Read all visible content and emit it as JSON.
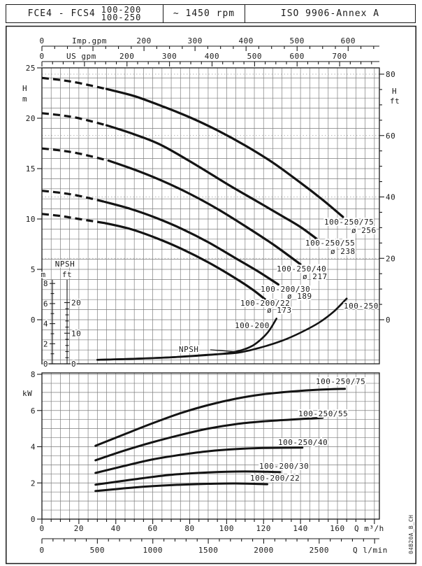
{
  "header": {
    "model": "FCE4 - FCS4",
    "sizes": [
      "100-200",
      "100-250"
    ],
    "speed": "~ 1450 rpm",
    "standard": "ISO 9906-Annex A"
  },
  "watermark": "04B20A_B_CH",
  "chart_data": {
    "type": "line",
    "title": "FCE4 - FCS4 pump performance curves at ~1450 rpm",
    "charts": [
      {
        "id": "head-flow",
        "x_axes": [
          {
            "id": "imp_gpm",
            "label": "Imp.gpm",
            "ticks": [
              0,
              200,
              300,
              400,
              500,
              600
            ],
            "minor_step": 25,
            "minor_max": 650
          },
          {
            "id": "us_gpm",
            "label": "US gpm",
            "ticks": [
              0,
              200,
              300,
              400,
              500,
              600,
              700
            ],
            "minor_step": 25,
            "minor_max": 775
          }
        ],
        "y_axis_left": {
          "label": "H",
          "unit": "m",
          "ticks": [
            25,
            20,
            15,
            10,
            5,
            0
          ],
          "range": [
            0,
            25
          ]
        },
        "y_axis_right": {
          "label": "H",
          "unit": "ft",
          "ticks": [
            80,
            60,
            40,
            20,
            0
          ],
          "range": [
            0,
            80
          ]
        },
        "grid": {
          "x_step_m3h": 5,
          "y_step_m": 1,
          "dotted_ft_lines": [
            20,
            40,
            60,
            80
          ]
        },
        "series": [
          {
            "name": "100-250/75",
            "impeller": "ø 256",
            "dash_until_q": 35,
            "points": [
              [
                0,
                24.0
              ],
              [
                10,
                23.8
              ],
              [
                20,
                23.5
              ],
              [
                35,
                22.9
              ],
              [
                50,
                22.2
              ],
              [
                65,
                21.2
              ],
              [
                80,
                20.1
              ],
              [
                95,
                18.8
              ],
              [
                110,
                17.3
              ],
              [
                125,
                15.6
              ],
              [
                140,
                13.6
              ],
              [
                152,
                11.9
              ],
              [
                163,
                10.2
              ]
            ]
          },
          {
            "name": "100-250/55",
            "impeller": "ø 238",
            "dash_until_q": 35,
            "points": [
              [
                0,
                20.5
              ],
              [
                10,
                20.3
              ],
              [
                20,
                20.0
              ],
              [
                35,
                19.3
              ],
              [
                50,
                18.4
              ],
              [
                65,
                17.3
              ],
              [
                84,
                15.3
              ],
              [
                100,
                13.5
              ],
              [
                115,
                11.9
              ],
              [
                130,
                10.3
              ],
              [
                140,
                9.2
              ],
              [
                149,
                8.0
              ]
            ]
          },
          {
            "name": "100-250/40",
            "impeller": "ø 217",
            "dash_until_q": 36,
            "points": [
              [
                0,
                17.0
              ],
              [
                10,
                16.8
              ],
              [
                20,
                16.5
              ],
              [
                36,
                15.8
              ],
              [
                50,
                14.9
              ],
              [
                65,
                13.8
              ],
              [
                80,
                12.5
              ],
              [
                95,
                11.0
              ],
              [
                110,
                9.3
              ],
              [
                125,
                7.5
              ],
              [
                140,
                5.5
              ]
            ]
          },
          {
            "name": "100-200/30",
            "impeller": "ø 189",
            "dash_until_q": 34,
            "points": [
              [
                0,
                12.8
              ],
              [
                10,
                12.6
              ],
              [
                20,
                12.3
              ],
              [
                34,
                11.7
              ],
              [
                48,
                11.0
              ],
              [
                62,
                10.1
              ],
              [
                76,
                9.0
              ],
              [
                90,
                7.7
              ],
              [
                104,
                6.2
              ],
              [
                117,
                4.8
              ],
              [
                128,
                3.5
              ]
            ]
          },
          {
            "name": "100-200/22",
            "impeller": "ø 173",
            "dash_until_q": 34,
            "points": [
              [
                0,
                10.5
              ],
              [
                10,
                10.3
              ],
              [
                20,
                10.0
              ],
              [
                34,
                9.6
              ],
              [
                48,
                9.0
              ],
              [
                62,
                8.1
              ],
              [
                76,
                7.0
              ],
              [
                90,
                5.7
              ],
              [
                104,
                4.2
              ],
              [
                114,
                3.0
              ],
              [
                121,
                2.0
              ]
            ]
          }
        ],
        "npsh": {
          "title": "NPSH",
          "y_axis_m": {
            "label": "m",
            "ticks": [
              8,
              6,
              4,
              2,
              0
            ],
            "range": [
              0,
              8
            ]
          },
          "y_axis_ft": {
            "label": "ft",
            "ticks": [
              20,
              10,
              0
            ],
            "range": [
              0,
              20
            ]
          },
          "series": [
            {
              "name": "100-200",
              "points": [
                [
                  30,
                  0.4
                ],
                [
                  50,
                  0.5
                ],
                [
                  70,
                  0.65
                ],
                [
                  88,
                  0.85
                ],
                [
                  100,
                  1.05
                ],
                [
                  108,
                  1.35
                ],
                [
                  114,
                  1.8
                ],
                [
                  119,
                  2.5
                ],
                [
                  123,
                  3.3
                ],
                [
                  127,
                  4.5
                ]
              ]
            },
            {
              "name": "100-250",
              "points": [
                [
                  30,
                  0.4
                ],
                [
                  50,
                  0.5
                ],
                [
                  70,
                  0.65
                ],
                [
                  90,
                  0.9
                ],
                [
                  106,
                  1.1
                ],
                [
                  118,
                  1.6
                ],
                [
                  130,
                  2.3
                ],
                [
                  140,
                  3.1
                ],
                [
                  150,
                  4.1
                ],
                [
                  158,
                  5.2
                ],
                [
                  165,
                  6.5
                ]
              ]
            }
          ]
        }
      },
      {
        "id": "power-flow",
        "y_axis": {
          "label": "kW",
          "ticks": [
            8,
            6,
            4,
            2,
            0
          ],
          "range": [
            0,
            8
          ]
        },
        "x_axes": [
          {
            "id": "q_m3h",
            "label": "Q m³/h",
            "ticks": [
              0,
              20,
              40,
              60,
              80,
              100,
              120,
              140,
              160
            ],
            "minor_step": 5,
            "minor_max": 180
          },
          {
            "id": "q_lmin",
            "label": "Q l/min",
            "ticks": [
              0,
              500,
              1000,
              1500,
              2000,
              2500
            ],
            "minor_step": 100,
            "minor_max": 3000
          }
        ],
        "grid": {
          "x_step_m3h": 5,
          "y_step_kw": 0.5
        },
        "series": [
          {
            "name": "100-250/75",
            "points": [
              [
                29,
                4.05
              ],
              [
                45,
                4.7
              ],
              [
                60,
                5.3
              ],
              [
                75,
                5.85
              ],
              [
                90,
                6.3
              ],
              [
                105,
                6.65
              ],
              [
                120,
                6.9
              ],
              [
                135,
                7.05
              ],
              [
                150,
                7.15
              ],
              [
                164,
                7.2
              ]
            ]
          },
          {
            "name": "100-250/55",
            "points": [
              [
                29,
                3.25
              ],
              [
                45,
                3.8
              ],
              [
                60,
                4.25
              ],
              [
                75,
                4.65
              ],
              [
                90,
                5.0
              ],
              [
                105,
                5.25
              ],
              [
                120,
                5.4
              ],
              [
                135,
                5.5
              ],
              [
                152,
                5.6
              ]
            ]
          },
          {
            "name": "100-250/40",
            "points": [
              [
                29,
                2.55
              ],
              [
                45,
                2.95
              ],
              [
                60,
                3.3
              ],
              [
                75,
                3.55
              ],
              [
                90,
                3.75
              ],
              [
                105,
                3.87
              ],
              [
                120,
                3.93
              ],
              [
                141,
                3.95
              ]
            ]
          },
          {
            "name": "100-200/30",
            "points": [
              [
                29,
                1.9
              ],
              [
                50,
                2.2
              ],
              [
                70,
                2.45
              ],
              [
                90,
                2.58
              ],
              [
                110,
                2.63
              ],
              [
                129,
                2.6
              ]
            ]
          },
          {
            "name": "100-200/22",
            "points": [
              [
                29,
                1.55
              ],
              [
                50,
                1.75
              ],
              [
                70,
                1.88
              ],
              [
                90,
                1.95
              ],
              [
                105,
                1.97
              ],
              [
                122,
                1.93
              ]
            ]
          }
        ]
      }
    ]
  }
}
